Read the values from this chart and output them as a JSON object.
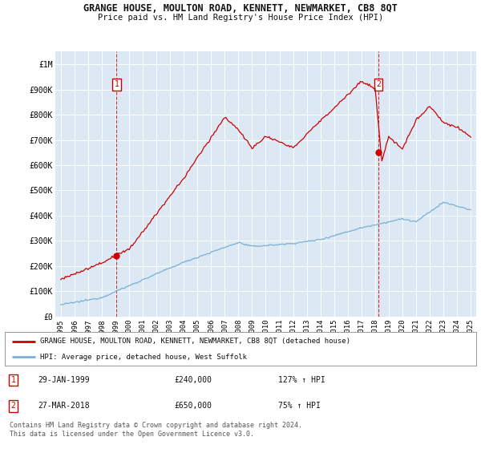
{
  "title": "GRANGE HOUSE, MOULTON ROAD, KENNETT, NEWMARKET, CB8 8QT",
  "subtitle": "Price paid vs. HM Land Registry's House Price Index (HPI)",
  "background_color": "#ffffff",
  "plot_bg_color": "#dce9f5",
  "red_line_color": "#cc0000",
  "blue_line_color": "#7bafd4",
  "grid_color": "#ffffff",
  "sale1_date": 1999.08,
  "sale1_price": 240000,
  "sale1_label": "1",
  "sale2_date": 2018.25,
  "sale2_price": 650000,
  "sale2_label": "2",
  "ylim_max": 1050000,
  "xlim_min": 1994.6,
  "xlim_max": 2025.4,
  "legend_line1": "GRANGE HOUSE, MOULTON ROAD, KENNETT, NEWMARKET, CB8 8QT (detached house)",
  "legend_line2": "HPI: Average price, detached house, West Suffolk",
  "table_row1": [
    "1",
    "29-JAN-1999",
    "£240,000",
    "127% ↑ HPI"
  ],
  "table_row2": [
    "2",
    "27-MAR-2018",
    "£650,000",
    "75% ↑ HPI"
  ],
  "footnote": "Contains HM Land Registry data © Crown copyright and database right 2024.\nThis data is licensed under the Open Government Licence v3.0.",
  "yticks": [
    0,
    100000,
    200000,
    300000,
    400000,
    500000,
    600000,
    700000,
    800000,
    900000,
    1000000
  ],
  "ytick_labels": [
    "£0",
    "£100K",
    "£200K",
    "£300K",
    "£400K",
    "£500K",
    "£600K",
    "£700K",
    "£800K",
    "£900K",
    "£1M"
  ]
}
